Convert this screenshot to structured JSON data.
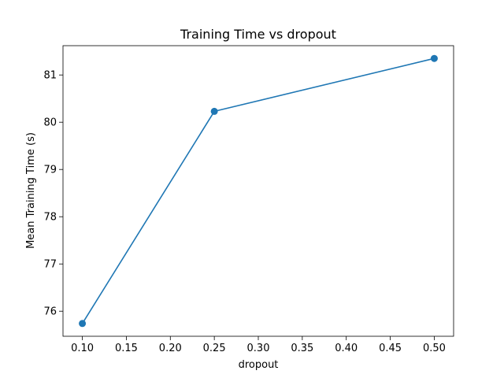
{
  "chart_data": {
    "type": "line",
    "title": "Training Time vs dropout",
    "xlabel": "dropout",
    "ylabel": "Mean Training Time (s)",
    "x": [
      0.1,
      0.25,
      0.5
    ],
    "series": [
      {
        "values": [
          75.74,
          80.23,
          81.35
        ],
        "color": "#1f77b4",
        "marker": "circle"
      }
    ],
    "xlim": [
      0.078,
      0.522
    ],
    "ylim": [
      75.47,
      81.62
    ],
    "xticks": [
      0.1,
      0.15,
      0.2,
      0.25,
      0.3,
      0.35,
      0.4,
      0.45,
      0.5
    ],
    "xtick_labels": [
      "0.10",
      "0.15",
      "0.20",
      "0.25",
      "0.30",
      "0.35",
      "0.40",
      "0.45",
      "0.50"
    ],
    "yticks": [
      76,
      77,
      78,
      79,
      80,
      81
    ],
    "ytick_labels": [
      "76",
      "77",
      "78",
      "79",
      "80",
      "81"
    ],
    "grid": false,
    "legend": "none"
  }
}
